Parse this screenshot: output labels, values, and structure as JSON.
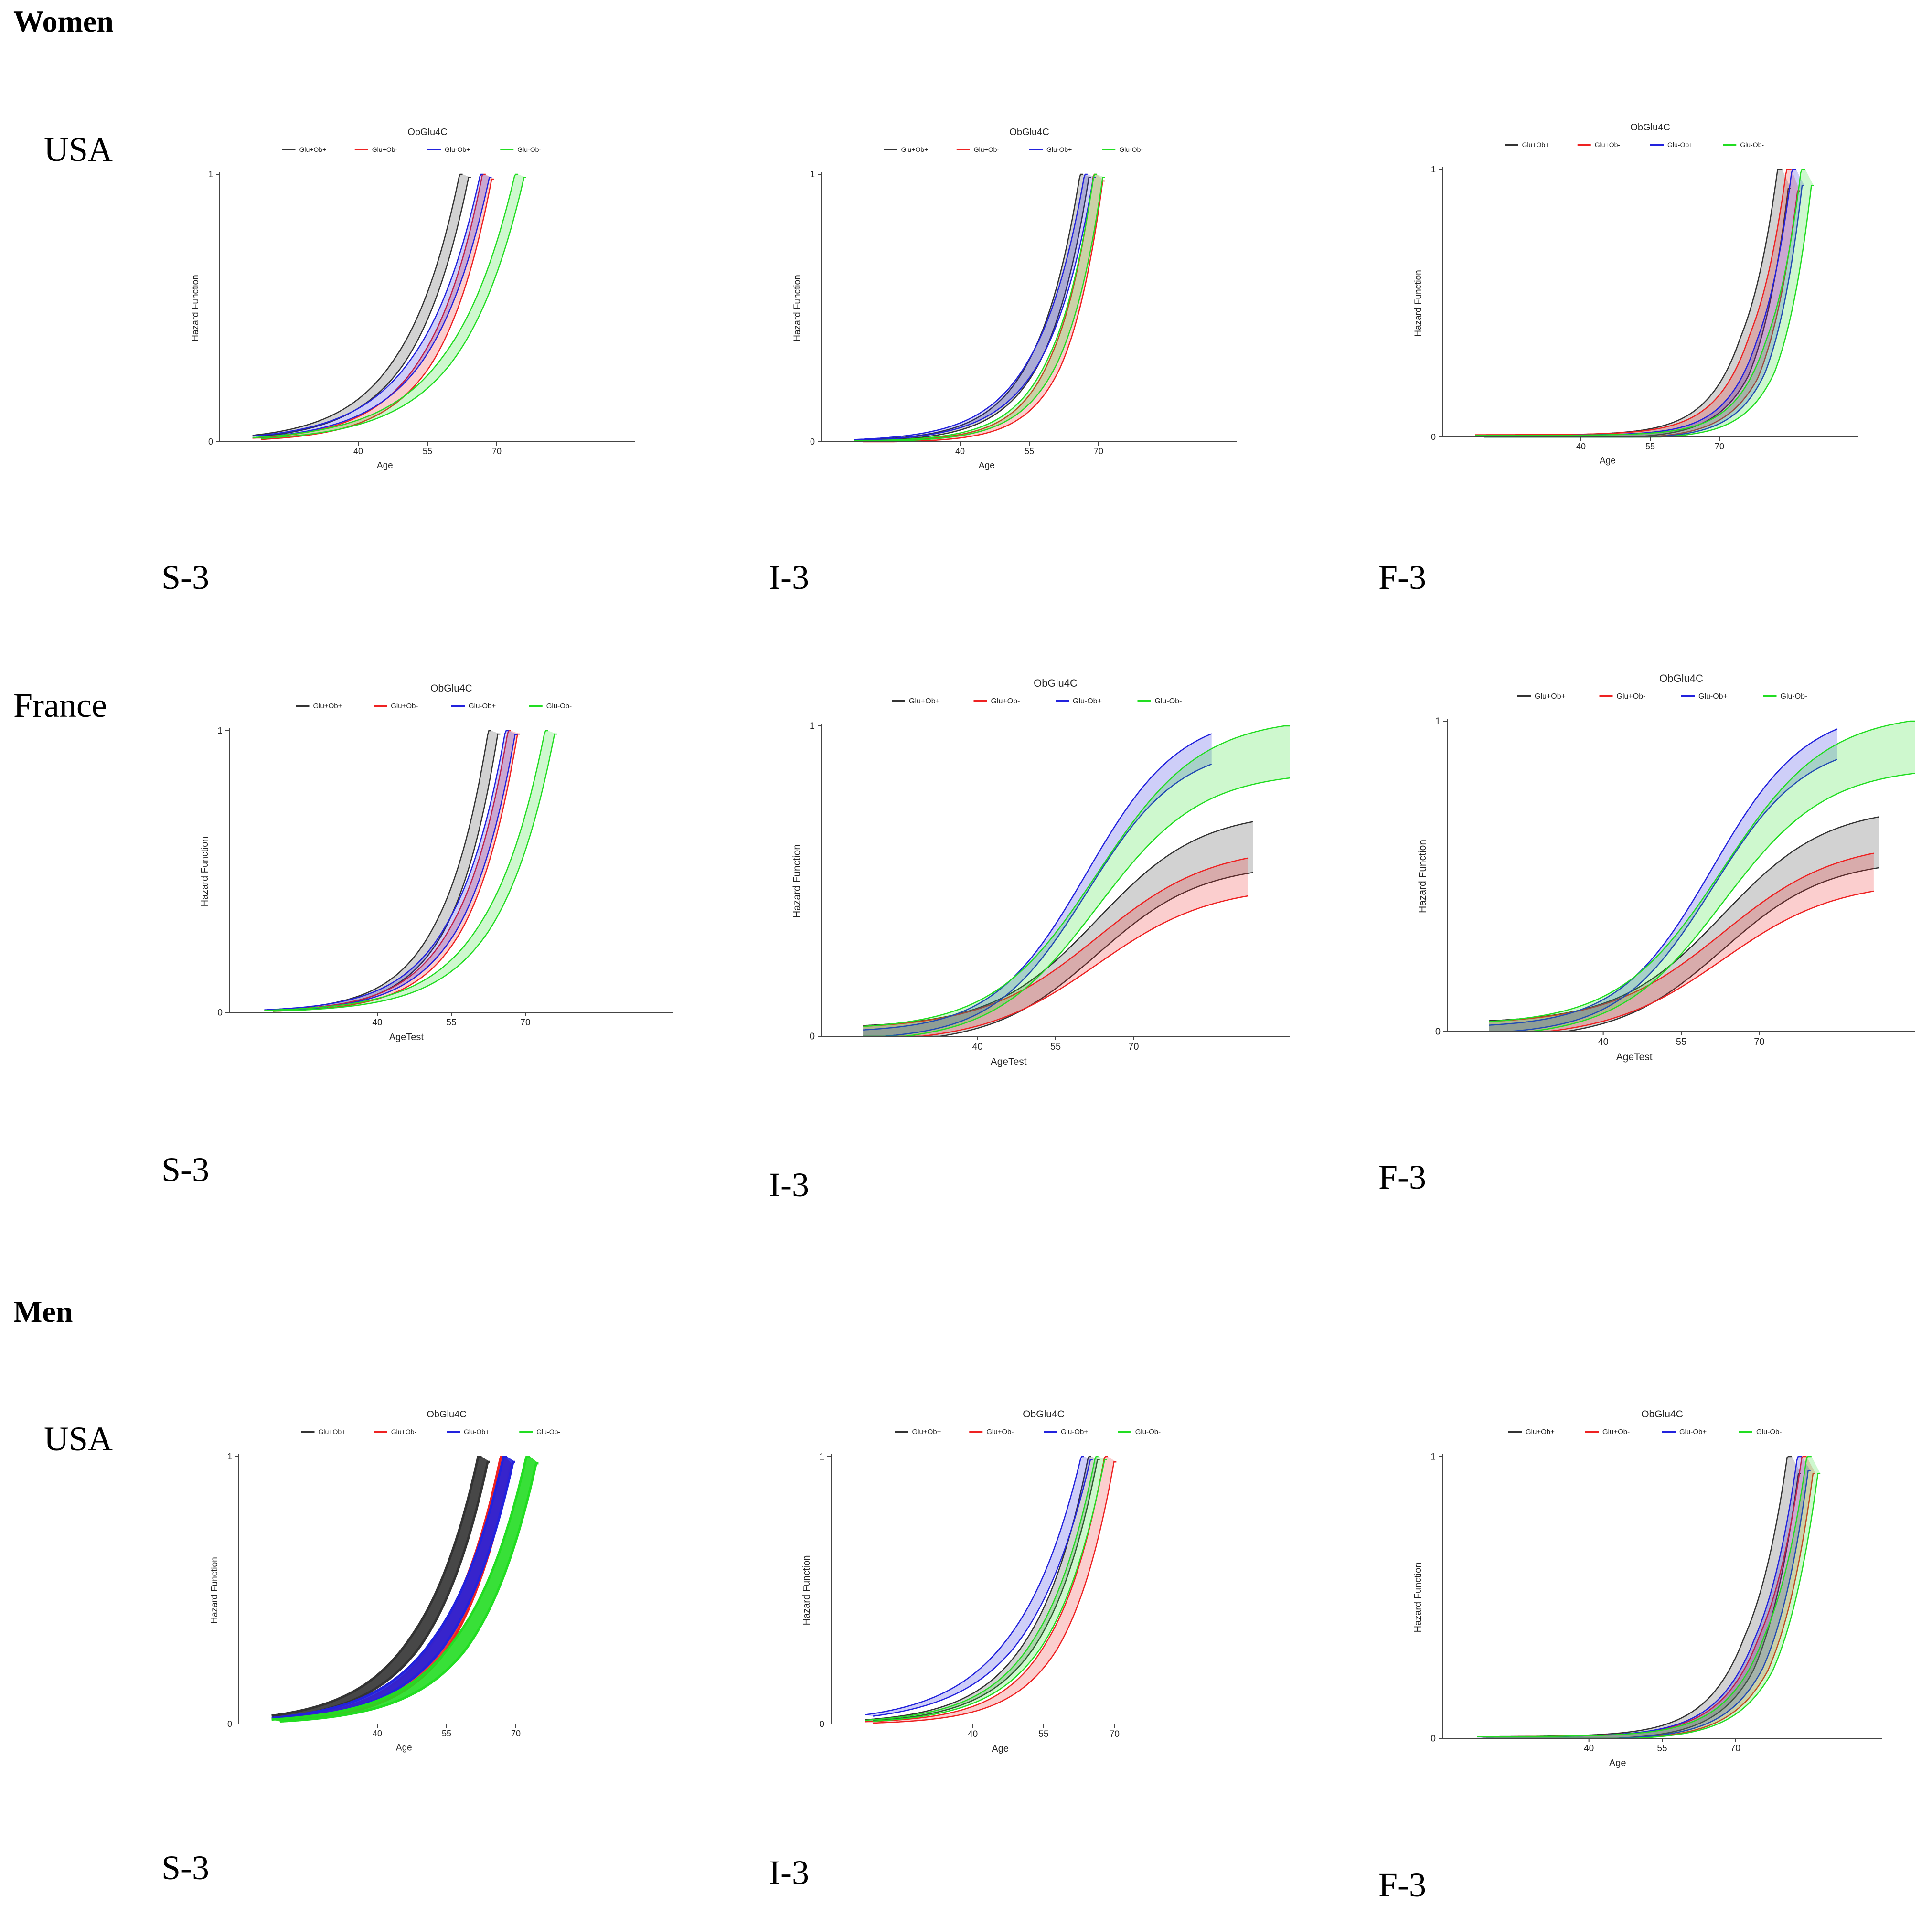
{
  "sections": {
    "women": "Women",
    "men": "Men"
  },
  "countries": {
    "usa_women": "USA",
    "france": "France",
    "usa_men": "USA"
  },
  "panel_labels": [
    "S-3",
    "I-3",
    "F-3",
    "S-3",
    "I-3",
    "F-3",
    "S-3",
    "I-3",
    "F-3"
  ],
  "colors": {
    "glu_pos_ob_pos": "#333333",
    "glu_pos_ob_neg": "#ee2222",
    "glu_neg_ob_pos": "#2222dd",
    "glu_neg_ob_neg": "#22dd22"
  },
  "chart_data": [
    {
      "id": "w-usa-s3",
      "type": "line",
      "title": "ObGlu4C",
      "xlabel": "Age",
      "ylabel": "Hazard Function",
      "xticks": [
        40,
        55,
        70
      ],
      "yticks": [
        0,
        1
      ],
      "xlim": [
        10,
        100
      ],
      "ylim": [
        0,
        1
      ],
      "band": "narrow",
      "legend": [
        "Glu+Ob+",
        "Glu+Ob-",
        "Glu-Ob+",
        "Glu-Ob-"
      ],
      "series": [
        {
          "name": "Glu+Ob+",
          "curve": "exp",
          "x_at_1": 63,
          "k": 0.085,
          "band": 0.012
        },
        {
          "name": "Glu+Ob-",
          "curve": "exp",
          "x_at_1": 68,
          "k": 0.09,
          "band": 0.018
        },
        {
          "name": "Glu-Ob+",
          "curve": "exp",
          "x_at_1": 67.5,
          "k": 0.08,
          "band": 0.012
        },
        {
          "name": "Glu-Ob-",
          "curve": "exp",
          "x_at_1": 75,
          "k": 0.075,
          "band": 0.012
        }
      ]
    },
    {
      "id": "w-usa-i3",
      "type": "line",
      "title": "ObGlu4C",
      "xlabel": "Age",
      "ylabel": "Hazard Function",
      "xticks": [
        40,
        55,
        70
      ],
      "yticks": [
        0,
        1
      ],
      "xlim": [
        10,
        100
      ],
      "ylim": [
        0,
        1
      ],
      "band": "narrow",
      "legend": [
        "Glu+Ob+",
        "Glu+Ob-",
        "Glu-Ob+",
        "Glu-Ob-"
      ],
      "series": [
        {
          "name": "Glu+Ob+",
          "curve": "exp",
          "x_at_1": 67,
          "k": 0.11,
          "band": 0.012
        },
        {
          "name": "Glu+Ob-",
          "curve": "exp",
          "x_at_1": 70,
          "k": 0.13,
          "band": 0.025
        },
        {
          "name": "Glu-Ob+",
          "curve": "exp",
          "x_at_1": 68,
          "k": 0.1,
          "band": 0.012
        },
        {
          "name": "Glu-Ob-",
          "curve": "exp",
          "x_at_1": 70,
          "k": 0.12,
          "band": 0.012
        }
      ]
    },
    {
      "id": "w-usa-f3",
      "type": "line",
      "title": "ObGlu4C",
      "xlabel": "Age",
      "ylabel": "Hazard Function",
      "xticks": [
        40,
        55,
        70
      ],
      "yticks": [
        0,
        1
      ],
      "xlim": [
        10,
        100
      ],
      "ylim": [
        0,
        1
      ],
      "band": "wide",
      "legend": [
        "Glu+Ob+",
        "Glu+Ob-",
        "Glu-Ob+",
        "Glu-Ob-"
      ],
      "series": [
        {
          "name": "Glu+Ob+",
          "curve": "exp",
          "x_at_1": 84,
          "k": 0.14,
          "band": 0.07
        },
        {
          "name": "Glu+Ob-",
          "curve": "exp",
          "x_at_1": 86,
          "k": 0.14,
          "band": 0.08
        },
        {
          "name": "Glu-Ob+",
          "curve": "exp",
          "x_at_1": 87,
          "k": 0.15,
          "band": 0.06
        },
        {
          "name": "Glu-Ob-",
          "curve": "exp",
          "x_at_1": 89,
          "k": 0.15,
          "band": 0.06
        }
      ]
    },
    {
      "id": "fr-s3",
      "type": "line",
      "title": "ObGlu4C",
      "xlabel": "AgeTest",
      "ylabel": "Hazard Function",
      "xticks": [
        40,
        55,
        70
      ],
      "yticks": [
        0,
        1
      ],
      "xlim": [
        10,
        100
      ],
      "ylim": [
        0,
        1
      ],
      "band": "narrow",
      "legend": [
        "Glu+Ob+",
        "Glu+Ob-",
        "Glu-Ob+",
        "Glu-Ob-"
      ],
      "series": [
        {
          "name": "Glu+Ob+",
          "curve": "exp",
          "x_at_1": 63.5,
          "k": 0.11,
          "band": 0.012
        },
        {
          "name": "Glu+Ob-",
          "curve": "exp",
          "x_at_1": 67.5,
          "k": 0.105,
          "band": 0.012
        },
        {
          "name": "Glu-Ob+",
          "curve": "exp",
          "x_at_1": 67,
          "k": 0.1,
          "band": 0.014
        },
        {
          "name": "Glu-Ob-",
          "curve": "exp",
          "x_at_1": 75,
          "k": 0.09,
          "band": 0.012
        }
      ]
    },
    {
      "id": "fr-i3",
      "type": "line",
      "title": "ObGlu4C",
      "xlabel": "AgeTest",
      "ylabel": "Hazard Function",
      "xticks": [
        40,
        55,
        70
      ],
      "yticks": [
        0,
        1
      ],
      "xlim": [
        10,
        100
      ],
      "ylim": [
        0,
        1
      ],
      "band": "wide",
      "legend": [
        "Glu+Ob+",
        "Glu+Ob-",
        "Glu-Ob+",
        "Glu-Ob-"
      ],
      "series": [
        {
          "name": "Glu+Ob+",
          "curve": "sig",
          "x_end": 93,
          "plateau": 0.64,
          "mid": 63,
          "s": 10,
          "band": 0.09
        },
        {
          "name": "Glu+Ob-",
          "curve": "sig",
          "x_end": 92,
          "plateau": 0.55,
          "mid": 63,
          "s": 11,
          "band": 0.075
        },
        {
          "name": "Glu-Ob+",
          "curve": "sig",
          "x_end": 85,
          "plateau": 0.99,
          "mid": 61,
          "s": 9,
          "band": 0.04
        },
        {
          "name": "Glu-Ob-",
          "curve": "sig",
          "x_end": 101,
          "plateau": 0.94,
          "mid": 63,
          "s": 10,
          "band": 0.07
        }
      ]
    },
    {
      "id": "fr-f3",
      "type": "line",
      "title": "ObGlu4C",
      "xlabel": "AgeTest",
      "ylabel": "Hazard Function",
      "xticks": [
        40,
        55,
        70
      ],
      "yticks": [
        0,
        1
      ],
      "xlim": [
        10,
        100
      ],
      "ylim": [
        0,
        1
      ],
      "band": "wide",
      "legend": [
        "Glu+Ob+",
        "Glu+Ob-",
        "Glu-Ob+",
        "Glu-Ob-"
      ],
      "series": [
        {
          "name": "Glu+Ob+",
          "curve": "sig",
          "x_end": 93,
          "plateau": 0.64,
          "mid": 63,
          "s": 10,
          "band": 0.09
        },
        {
          "name": "Glu+Ob-",
          "curve": "sig",
          "x_end": 92,
          "plateau": 0.55,
          "mid": 63,
          "s": 11,
          "band": 0.075
        },
        {
          "name": "Glu-Ob+",
          "curve": "sig",
          "x_end": 85,
          "plateau": 0.99,
          "mid": 61,
          "s": 9,
          "band": 0.04
        },
        {
          "name": "Glu-Ob-",
          "curve": "sig",
          "x_end": 101,
          "plateau": 0.94,
          "mid": 63,
          "s": 10,
          "band": 0.07
        }
      ]
    },
    {
      "id": "m-usa-s3",
      "type": "line",
      "title": "ObGlu4C",
      "xlabel": "Age",
      "ylabel": "Hazard Function",
      "xticks": [
        40,
        55,
        70
      ],
      "yticks": [
        0,
        1
      ],
      "xlim": [
        10,
        100
      ],
      "ylim": [
        0,
        1
      ],
      "band": "thick",
      "legend": [
        "Glu+Ob+",
        "Glu+Ob-",
        "Glu-Ob+",
        "Glu-Ob-"
      ],
      "series": [
        {
          "name": "Glu+Ob+",
          "curve": "exp",
          "x_at_1": 63,
          "k": 0.08,
          "band": 0.02
        },
        {
          "name": "Glu+Ob-",
          "curve": "exp",
          "x_at_1": 68,
          "k": 0.085,
          "band": 0.03
        },
        {
          "name": "Glu-Ob+",
          "curve": "exp",
          "x_at_1": 68.5,
          "k": 0.078,
          "band": 0.02
        },
        {
          "name": "Glu-Ob-",
          "curve": "exp",
          "x_at_1": 73.5,
          "k": 0.078,
          "band": 0.025
        }
      ]
    },
    {
      "id": "m-usa-i3",
      "type": "line",
      "title": "ObGlu4C",
      "xlabel": "Age",
      "ylabel": "Hazard Function",
      "xticks": [
        40,
        55,
        70
      ],
      "yticks": [
        0,
        1
      ],
      "xlim": [
        10,
        100
      ],
      "ylim": [
        0,
        1
      ],
      "band": "narrow",
      "legend": [
        "Glu+Ob+",
        "Glu+Ob-",
        "Glu-Ob+",
        "Glu-Ob-"
      ],
      "series": [
        {
          "name": "Glu+Ob+",
          "curve": "exp",
          "x_at_1": 65.5,
          "k": 0.09,
          "band": 0.012
        },
        {
          "name": "Glu+Ob-",
          "curve": "exp",
          "x_at_1": 69,
          "k": 0.1,
          "band": 0.02
        },
        {
          "name": "Glu-Ob+",
          "curve": "exp",
          "x_at_1": 64,
          "k": 0.075,
          "band": 0.012
        },
        {
          "name": "Glu-Ob-",
          "curve": "exp",
          "x_at_1": 67,
          "k": 0.09,
          "band": 0.012
        }
      ]
    },
    {
      "id": "m-usa-f3",
      "type": "line",
      "title": "ObGlu4C",
      "xlabel": "Age",
      "ylabel": "Hazard Function",
      "xticks": [
        40,
        55,
        70
      ],
      "yticks": [
        0,
        1
      ],
      "xlim": [
        10,
        100
      ],
      "ylim": [
        0,
        1
      ],
      "band": "wide",
      "legend": [
        "Glu+Ob+",
        "Glu+Ob-",
        "Glu-Ob+",
        "Glu-Ob-"
      ],
      "series": [
        {
          "name": "Glu+Ob+",
          "curve": "exp",
          "x_at_1": 82,
          "k": 0.13,
          "band": 0.06
        },
        {
          "name": "Glu+Ob-",
          "curve": "exp",
          "x_at_1": 85,
          "k": 0.13,
          "band": 0.06
        },
        {
          "name": "Glu-Ob+",
          "curve": "exp",
          "x_at_1": 84,
          "k": 0.13,
          "band": 0.05
        },
        {
          "name": "Glu-Ob-",
          "curve": "exp",
          "x_at_1": 86,
          "k": 0.13,
          "band": 0.06
        }
      ]
    }
  ]
}
